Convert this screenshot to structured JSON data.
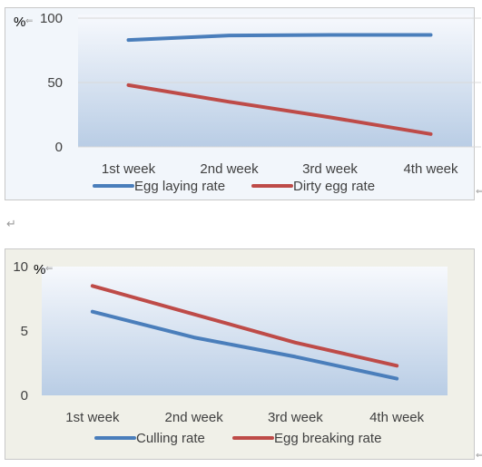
{
  "chart_data": [
    {
      "type": "line",
      "unit_label": "%",
      "categories": [
        "1st week",
        "2nd week",
        "3rd week",
        "4th week"
      ],
      "series": [
        {
          "name": "Egg laying rate",
          "values": [
            83,
            86.5,
            87,
            87
          ],
          "color": "#4a7ebb"
        },
        {
          "name": "Dirty egg rate",
          "values": [
            48,
            35,
            23,
            10
          ],
          "color": "#be4b48"
        }
      ],
      "yticks": [
        "0",
        "50",
        "100"
      ],
      "ylim": [
        0,
        100
      ],
      "grid": true,
      "legend_position": "bottom",
      "background": "gradient-blue"
    },
    {
      "type": "line",
      "unit_label": "%",
      "categories": [
        "1st week",
        "2nd week",
        "3rd week",
        "4th week"
      ],
      "series": [
        {
          "name": "Culling rate",
          "values": [
            6.5,
            4.5,
            3.0,
            1.3
          ],
          "color": "#4a7ebb"
        },
        {
          "name": "Egg breaking rate",
          "values": [
            8.5,
            6.3,
            4.1,
            2.3
          ],
          "color": "#be4b48"
        }
      ],
      "yticks": [
        "0",
        "5",
        "10"
      ],
      "ylim": [
        0,
        10
      ],
      "grid": false,
      "legend_position": "bottom",
      "background": "gradient-blue"
    }
  ],
  "marks": {
    "return_symbol": "↵",
    "anchor_symbol": "⇐"
  }
}
